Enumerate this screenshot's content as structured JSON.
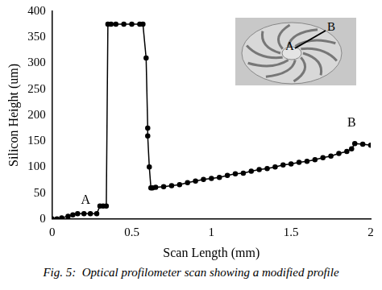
{
  "chart_data": {
    "type": "line",
    "marker": "circle",
    "color": "#000000",
    "grid": false,
    "x_label": "Scan Length (mm)",
    "y_label": "Silicon Height (um)",
    "caption": "Fig. 5:  Optical profilometer scan showing a modified profile",
    "annotations": [
      {
        "text": "A",
        "x": 0.21,
        "y": 35
      },
      {
        "text": "B",
        "x": 1.88,
        "y": 185
      }
    ],
    "inset_labels": [
      "A",
      "B"
    ],
    "x": [
      0,
      0.03,
      0.06,
      0.1,
      0.13,
      0.16,
      0.2,
      0.24,
      0.28,
      0.3,
      0.32,
      0.34,
      0.35,
      0.37,
      0.4,
      0.45,
      0.5,
      0.55,
      0.57,
      0.59,
      0.6,
      0.6,
      0.61,
      0.62,
      0.63,
      0.65,
      0.7,
      0.75,
      0.8,
      0.85,
      0.9,
      0.95,
      1.0,
      1.05,
      1.1,
      1.15,
      1.2,
      1.25,
      1.3,
      1.35,
      1.4,
      1.45,
      1.5,
      1.55,
      1.6,
      1.65,
      1.7,
      1.75,
      1.8,
      1.85,
      1.88,
      1.9,
      1.95,
      2.0
    ],
    "values": [
      0,
      0,
      2,
      5,
      8,
      10,
      10,
      10,
      10,
      25,
      25,
      25,
      375,
      375,
      375,
      375,
      375,
      375,
      375,
      310,
      175,
      160,
      100,
      60,
      60,
      61,
      62,
      64,
      66,
      70,
      73,
      76,
      78,
      80,
      84,
      87,
      88,
      92,
      95,
      97,
      100,
      104,
      106,
      109,
      111,
      114,
      118,
      121,
      126,
      130,
      135,
      145,
      144,
      142
    ],
    "xlim": [
      0,
      2
    ],
    "xticks": [
      0,
      0.5,
      1,
      1.5,
      2
    ],
    "ylim": [
      0,
      400
    ],
    "yticks": [
      0,
      50,
      100,
      150,
      200,
      250,
      300,
      350,
      400
    ]
  }
}
